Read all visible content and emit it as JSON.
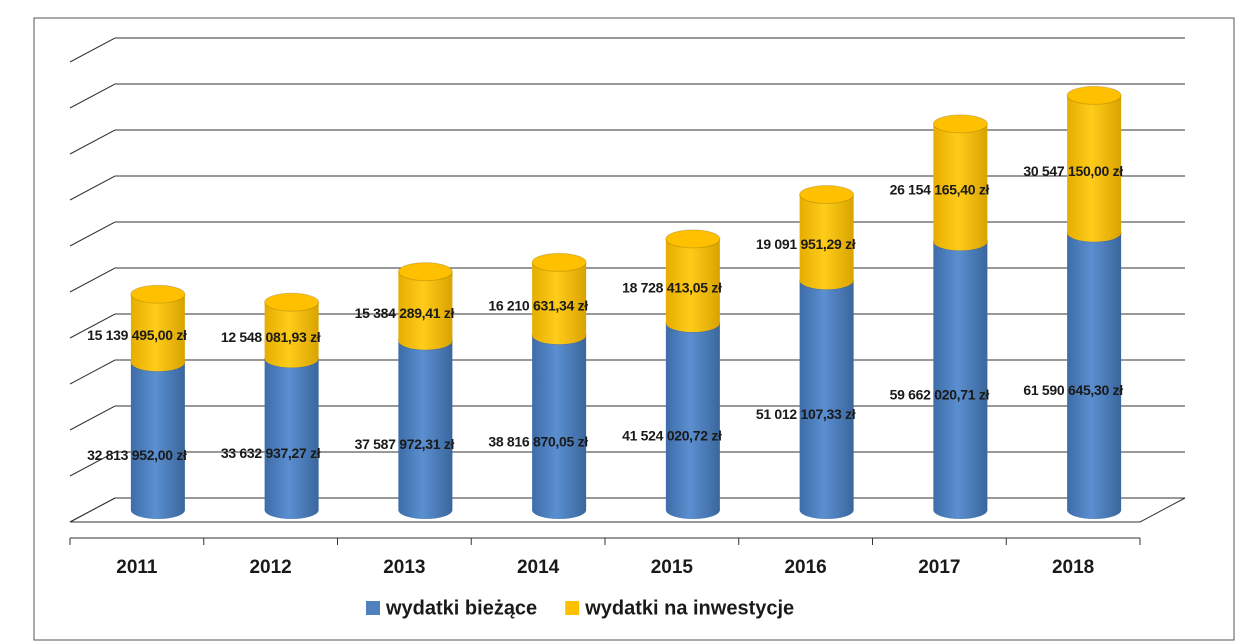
{
  "chart_data": {
    "type": "bar3d_stacked",
    "categories": [
      "2011",
      "2012",
      "2013",
      "2014",
      "2015",
      "2016",
      "2017",
      "2018"
    ],
    "series": [
      {
        "name": "wydatki bieżące",
        "color": "#4f81bd",
        "values": [
          32813952.0,
          33632937.27,
          37587972.31,
          38816870.05,
          41524020.72,
          51012107.33,
          59662020.71,
          61590645.3
        ],
        "value_labels": [
          "32 813 952,00 zł",
          "33 632 937,27 zł",
          "37 587 972,31 zł",
          "38 816 870,05 zł",
          "41 524 020,72 zł",
          "51 012 107,33 zł",
          "59 662 020,71 zł",
          "61 590 645,30 zł"
        ]
      },
      {
        "name": "wydatki na inwestycje",
        "color": "#ffc000",
        "values": [
          15139495.0,
          12548081.93,
          15384289.41,
          16210631.34,
          18728413.05,
          19091951.29,
          26154165.4,
          30547150.0
        ],
        "value_labels": [
          "15 139 495,00 zł",
          "12 548 081,93 zł",
          "15 384 289,41 zł",
          "16 210 631,34 zł",
          "18 728 413,05 zł",
          "19 091 951,29 zł",
          "26 154 165,40 zł",
          "30 547 150,00 zł"
        ]
      }
    ],
    "stacked": true,
    "ylim": [
      0,
      100000000
    ],
    "yticks": [
      0,
      10000000,
      20000000,
      30000000,
      40000000,
      50000000,
      60000000,
      70000000,
      80000000,
      90000000,
      100000000
    ],
    "grid": true,
    "legend": "bottom"
  }
}
